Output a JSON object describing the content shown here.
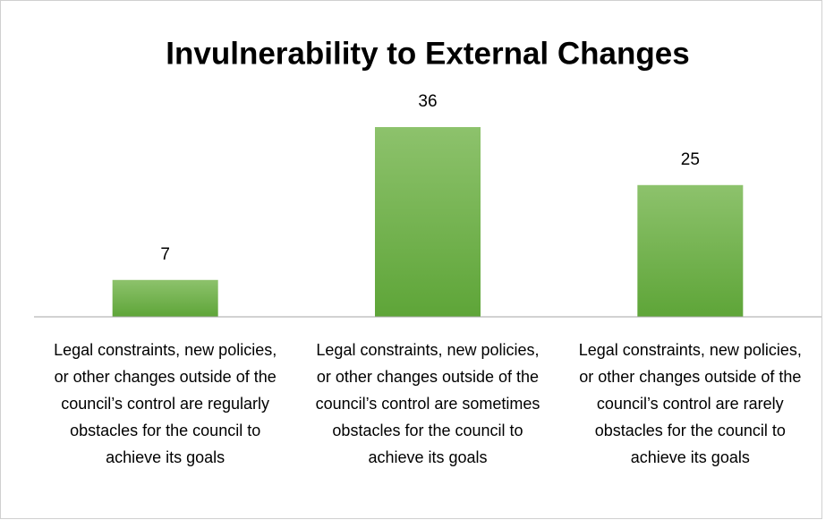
{
  "chart_data": {
    "type": "bar",
    "title": "Invulnerability to External Changes",
    "categories": [
      "Legal constraints, new policies, or other changes outside of the council’s control are regularly obstacles for the council to achieve its goals",
      "Legal constraints, new policies, or other changes outside of the council’s control are sometimes obstacles for the council to achieve its goals",
      "Legal constraints, new policies, or other changes outside of the council’s control are rarely obstacles for the council to achieve its goals"
    ],
    "values": [
      7,
      36,
      25
    ],
    "color": "#70ad47"
  }
}
